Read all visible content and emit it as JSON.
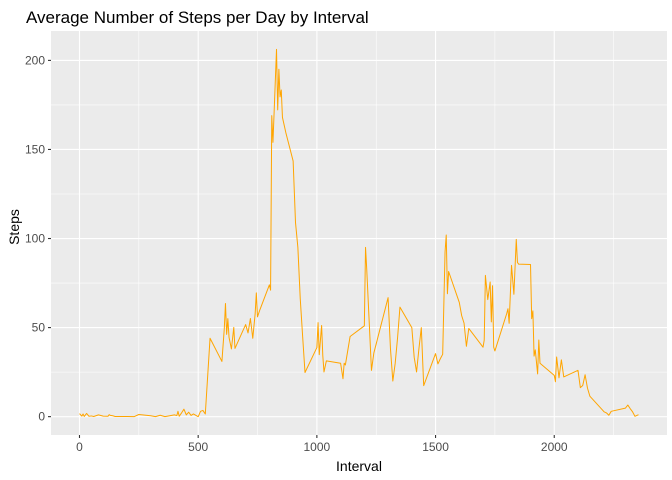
{
  "chart_data": {
    "type": "line",
    "title": "Average Number of Steps per Day by Interval",
    "xlabel": "Interval",
    "ylabel": "Steps",
    "xlim": [
      -120,
      2475
    ],
    "ylim": [
      -10.3,
      216.5
    ],
    "xticks": [
      0,
      500,
      1000,
      1500,
      2000
    ],
    "yticks": [
      0,
      50,
      100,
      150,
      200
    ],
    "grid": true,
    "legend": "none",
    "colors": {
      "panel": "#ebebeb",
      "grid": "#ffffff",
      "line": "#ffa500",
      "tick": "#333333"
    },
    "series": [
      {
        "x": [
          0,
          10,
          15,
          20,
          30,
          40,
          50,
          60,
          80,
          100,
          120,
          125,
          130,
          140,
          150,
          200,
          230,
          250,
          300,
          320,
          340,
          360,
          400,
          410,
          415,
          420,
          430,
          440,
          450,
          460,
          470,
          480,
          500,
          510,
          520,
          530,
          550,
          600,
          610,
          615,
          620,
          625,
          630,
          640,
          650,
          655,
          700,
          710,
          720,
          730,
          740,
          745,
          750,
          760,
          800,
          805,
          810,
          815,
          820,
          830,
          835,
          840,
          845,
          850,
          855,
          870,
          900,
          910,
          920,
          930,
          940,
          950,
          1000,
          1005,
          1010,
          1020,
          1025,
          1030,
          1040,
          1100,
          1110,
          1115,
          1120,
          1140,
          1200,
          1205,
          1210,
          1220,
          1230,
          1240,
          1300,
          1310,
          1320,
          1330,
          1340,
          1350,
          1400,
          1410,
          1420,
          1430,
          1440,
          1450,
          1500,
          1510,
          1520,
          1530,
          1540,
          1545,
          1550,
          1555,
          1600,
          1610,
          1620,
          1630,
          1640,
          1700,
          1705,
          1710,
          1720,
          1730,
          1735,
          1740,
          1745,
          1750,
          1800,
          1805,
          1810,
          1820,
          1830,
          1840,
          1845,
          1850,
          1900,
          1905,
          1910,
          1915,
          1920,
          1930,
          1935,
          1940,
          2000,
          2005,
          2010,
          2020,
          2030,
          2040,
          2100,
          2110,
          2120,
          2130,
          2140,
          2150,
          2200,
          2210,
          2220,
          2230,
          2240,
          2300,
          2310,
          2320,
          2330,
          2340,
          2355
        ],
        "y": [
          1.7,
          0.3,
          1.5,
          0.1,
          1.8,
          0.2,
          0.4,
          0.1,
          1.0,
          0.3,
          0.2,
          1.1,
          0.7,
          0.5,
          0.1,
          0.1,
          0.0,
          1.2,
          0.5,
          0.0,
          0.8,
          0.0,
          1.0,
          0.6,
          3.0,
          0.2,
          2.1,
          4.2,
          1.0,
          2.5,
          0.7,
          1.5,
          0.0,
          3.0,
          3.5,
          1.5,
          44.0,
          31.0,
          49.5,
          63.5,
          46.2,
          55.0,
          44.5,
          38.0,
          50.1,
          38.3,
          51.7,
          47.0,
          55.1,
          44.0,
          57.8,
          69.5,
          56.0,
          60.0,
          74.0,
          71.0,
          169.0,
          154.0,
          171.2,
          206.2,
          172.2,
          195.0,
          179.5,
          183.4,
          168.0,
          159.0,
          143.5,
          109.0,
          95.0,
          66.2,
          45.2,
          24.8,
          38.8,
          52.8,
          34.8,
          51.2,
          34.2,
          25.1,
          31.3,
          30.0,
          21.3,
          30.0,
          29.0,
          45.0,
          51.0,
          95.0,
          83.0,
          54.5,
          26.0,
          35.7,
          66.8,
          38.3,
          20.0,
          30.0,
          44.3,
          61.5,
          50.0,
          33.3,
          25.1,
          38.2,
          50.0,
          17.4,
          35.4,
          29.6,
          32.5,
          35.0,
          92.5,
          102.0,
          69.0,
          81.5,
          64.1,
          56.7,
          52.5,
          39.5,
          49.5,
          39.0,
          43.0,
          79.3,
          65.7,
          75.6,
          53.2,
          73.5,
          39.0,
          36.9,
          58.0,
          60.6,
          52.4,
          84.9,
          68.7,
          99.5,
          86.6,
          85.6,
          85.4,
          55.0,
          59.4,
          34.0,
          37.5,
          24.0,
          43.0,
          30.0,
          23.2,
          19.6,
          33.5,
          21.8,
          31.9,
          22.3,
          26.0,
          16.3,
          17.5,
          23.5,
          16.0,
          11.5,
          4.2,
          2.7,
          2.1,
          0.8,
          3.0,
          4.8,
          6.5,
          4.5,
          2.7,
          0.2,
          1.1
        ]
      }
    ]
  }
}
